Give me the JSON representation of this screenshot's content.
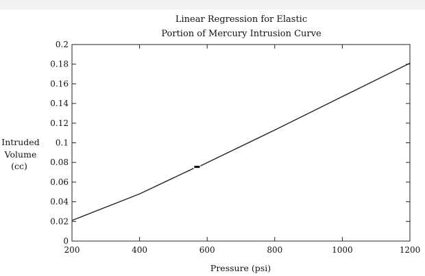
{
  "chart_data": {
    "type": "line",
    "title_lines": [
      "Linear Regression for Elastic",
      "Portion of Mercury Intrusion Curve"
    ],
    "xlabel": "Pressure (psi)",
    "ylabel_lines": [
      "Intruded",
      "Volume",
      "(cc)"
    ],
    "xlim": [
      200,
      1200
    ],
    "ylim": [
      0,
      0.2
    ],
    "xticks": [
      200,
      400,
      600,
      800,
      1000,
      1200
    ],
    "yticks": [
      0,
      0.02,
      0.04,
      0.06,
      0.08,
      0.1,
      0.12,
      0.14,
      0.16,
      0.18,
      0.2
    ],
    "xtick_labels": [
      "200",
      "400",
      "600",
      "800",
      "1000",
      "1200"
    ],
    "ytick_labels": [
      "0",
      "0.02",
      "0.04",
      "0.06",
      "0.08",
      "0.1",
      "0.12",
      "0.14",
      "0.16",
      "0.18",
      "0.2"
    ],
    "grid": false,
    "series": [
      {
        "color": "#222222",
        "x": [
          200,
          400,
          560
        ],
        "y": [
          0.021,
          0.048,
          0.074
        ]
      },
      {
        "color": "#222222",
        "x": [
          580,
          800,
          1000,
          1200
        ],
        "y": [
          0.0765,
          0.113,
          0.147,
          0.181
        ]
      }
    ],
    "markers": [
      {
        "x": 570,
        "y": 0.0755
      }
    ]
  }
}
